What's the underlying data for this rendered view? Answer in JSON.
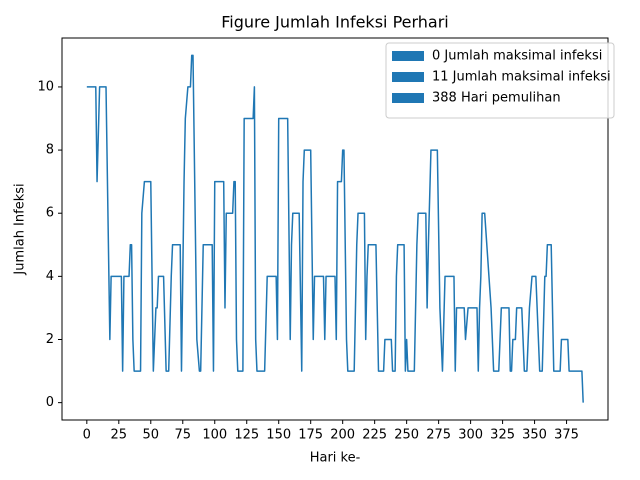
{
  "chart_data": {
    "type": "line",
    "title": "Figure Jumlah Infeksi Perhari",
    "xlabel": "Hari ke-",
    "ylabel": "Jumlah Infeksi",
    "color": "#1f77b4",
    "x": [
      0,
      7,
      8,
      10,
      15,
      18,
      19,
      27,
      28,
      29,
      33,
      34,
      35,
      36,
      37,
      42,
      43,
      45,
      50,
      52,
      54,
      55,
      56,
      60,
      62,
      64,
      66,
      67,
      73,
      74,
      76,
      77,
      79,
      81,
      82,
      83,
      86,
      88,
      89,
      91,
      98,
      99,
      100,
      107,
      108,
      109,
      114,
      115,
      116,
      117,
      118,
      122,
      123,
      130,
      131,
      132,
      133,
      139,
      141,
      148,
      149,
      150,
      157,
      159,
      160,
      161,
      166,
      168,
      169,
      170,
      175,
      177,
      178,
      185,
      186,
      187,
      194,
      195,
      196,
      199,
      200,
      201,
      203,
      204,
      209,
      211,
      212,
      217,
      218,
      219,
      220,
      226,
      228,
      232,
      233,
      238,
      239,
      241,
      242,
      243,
      248,
      249,
      250,
      251,
      256,
      258,
      259,
      265,
      266,
      267,
      269,
      274,
      276,
      278,
      280,
      287,
      288,
      289,
      295,
      296,
      298,
      305,
      306,
      307,
      308,
      309,
      311,
      316,
      318,
      322,
      323,
      324,
      330,
      331,
      332,
      333,
      335,
      336,
      340,
      342,
      344,
      346,
      348,
      351,
      354,
      356,
      358,
      359,
      360,
      363,
      365,
      370,
      371,
      376,
      377,
      387,
      388
    ],
    "values": [
      10,
      10,
      7,
      10,
      10,
      2,
      4,
      4,
      1,
      4,
      4,
      5,
      5,
      2,
      1,
      1,
      6,
      7,
      7,
      1,
      3,
      3,
      4,
      4,
      1,
      1,
      4,
      5,
      5,
      1,
      7,
      9,
      10,
      10,
      11,
      11,
      2,
      1,
      1,
      5,
      5,
      1,
      7,
      7,
      3,
      6,
      6,
      7,
      7,
      2,
      1,
      1,
      9,
      9,
      10,
      2,
      1,
      1,
      4,
      4,
      2,
      9,
      9,
      2,
      5,
      6,
      6,
      1,
      7,
      8,
      8,
      2,
      4,
      4,
      2,
      4,
      4,
      2,
      7,
      7,
      8,
      8,
      2,
      1,
      1,
      5,
      6,
      6,
      2,
      4,
      5,
      5,
      1,
      1,
      2,
      2,
      1,
      1,
      4,
      5,
      5,
      1,
      2,
      1,
      1,
      5,
      6,
      6,
      3,
      5,
      8,
      8,
      3,
      1,
      4,
      4,
      1,
      3,
      3,
      2,
      3,
      3,
      1,
      3,
      4,
      6,
      6,
      3,
      1,
      1,
      2,
      3,
      3,
      1,
      1,
      2,
      2,
      3,
      3,
      1,
      1,
      3,
      4,
      4,
      1,
      1,
      4,
      4,
      5,
      5,
      1,
      1,
      2,
      2,
      1,
      1,
      0
    ],
    "xlim": [
      -19.4,
      407.4
    ],
    "ylim": [
      -0.55,
      11.55
    ],
    "xticks": [
      0,
      25,
      50,
      75,
      100,
      125,
      150,
      175,
      200,
      225,
      250,
      275,
      300,
      325,
      350,
      375
    ],
    "yticks": [
      0,
      2,
      4,
      6,
      8,
      10
    ],
    "legend": {
      "loc": "upper right",
      "color": "#1f77b4",
      "entries": [
        "0 Jumlah maksimal infeksi",
        "11 Jumlah maksimal infeksi",
        "388 Hari pemulihan"
      ]
    }
  }
}
